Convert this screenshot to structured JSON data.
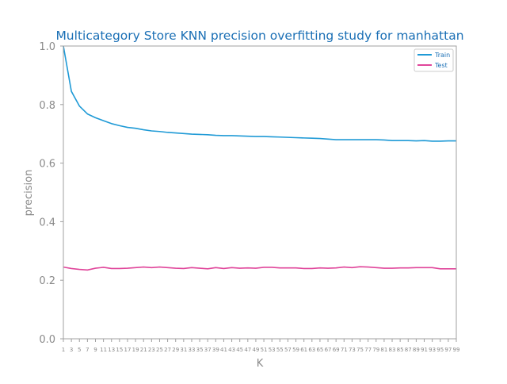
{
  "chart_data": {
    "type": "line",
    "title": "Multicategory Store KNN precision overfitting study for manhattan",
    "xlabel": "K",
    "ylabel": "precision",
    "ylim": [
      0.0,
      1.0
    ],
    "yticks": [
      "0.0",
      "0.2",
      "0.4",
      "0.6",
      "0.8",
      "1.0"
    ],
    "x": [
      1,
      3,
      5,
      7,
      9,
      11,
      13,
      15,
      17,
      19,
      21,
      23,
      25,
      27,
      29,
      31,
      33,
      35,
      37,
      39,
      41,
      43,
      45,
      47,
      49,
      51,
      53,
      55,
      57,
      59,
      61,
      63,
      65,
      67,
      69,
      71,
      73,
      75,
      77,
      79,
      81,
      83,
      85,
      87,
      89,
      91,
      93,
      95,
      97,
      99
    ],
    "legend_position": "top-right",
    "grid": false,
    "series": [
      {
        "name": "Train",
        "color": "#1f9ad6",
        "values": [
          1.0,
          0.845,
          0.795,
          0.768,
          0.755,
          0.745,
          0.735,
          0.728,
          0.722,
          0.719,
          0.714,
          0.71,
          0.708,
          0.705,
          0.703,
          0.701,
          0.699,
          0.698,
          0.697,
          0.695,
          0.694,
          0.694,
          0.693,
          0.692,
          0.691,
          0.691,
          0.69,
          0.689,
          0.688,
          0.687,
          0.686,
          0.685,
          0.684,
          0.682,
          0.68,
          0.68,
          0.68,
          0.68,
          0.68,
          0.68,
          0.679,
          0.677,
          0.677,
          0.677,
          0.676,
          0.677,
          0.675,
          0.675,
          0.676,
          0.676
        ]
      },
      {
        "name": "Test",
        "color": "#e0459a",
        "values": [
          0.245,
          0.24,
          0.237,
          0.235,
          0.241,
          0.244,
          0.24,
          0.24,
          0.241,
          0.243,
          0.245,
          0.243,
          0.245,
          0.243,
          0.241,
          0.24,
          0.243,
          0.241,
          0.239,
          0.243,
          0.24,
          0.243,
          0.241,
          0.242,
          0.241,
          0.244,
          0.244,
          0.242,
          0.242,
          0.242,
          0.24,
          0.24,
          0.242,
          0.241,
          0.242,
          0.245,
          0.243,
          0.246,
          0.245,
          0.243,
          0.241,
          0.241,
          0.242,
          0.242,
          0.243,
          0.243,
          0.243,
          0.239,
          0.239,
          0.239
        ]
      }
    ]
  }
}
